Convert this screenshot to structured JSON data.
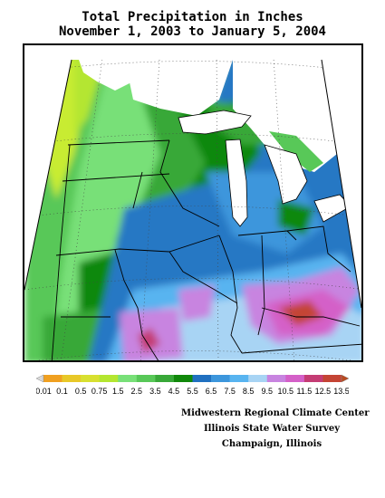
{
  "title": {
    "line1": "Total Precipitation in Inches",
    "line2": "November 1, 2003 to January 5, 2004"
  },
  "legend": {
    "units": "inches",
    "labels": [
      "0.01",
      "0.1",
      "0.5",
      "0.75",
      "1.5",
      "2.5",
      "3.5",
      "4.5",
      "5.5",
      "6.5",
      "7.5",
      "8.5",
      "9.5",
      "10.5",
      "11.5",
      "12.5",
      "13.5"
    ],
    "colors": [
      "#f0a020",
      "#e8c828",
      "#d8e030",
      "#b4e630",
      "#78e078",
      "#58c858",
      "#38a838",
      "#10880a",
      "#2070c0",
      "#3c96dc",
      "#58b4f0",
      "#a8d4f4",
      "#c884e0",
      "#d460c8",
      "#c43c74",
      "#c44434"
    ],
    "low_arrow_color": "#d8d8d8",
    "high_arrow_color": "#b84a20"
  },
  "credits": {
    "line1": "Midwestern Regional Climate Center",
    "line2": "Illinois State Water Survey",
    "line3": "Champaign, Illinois"
  }
}
